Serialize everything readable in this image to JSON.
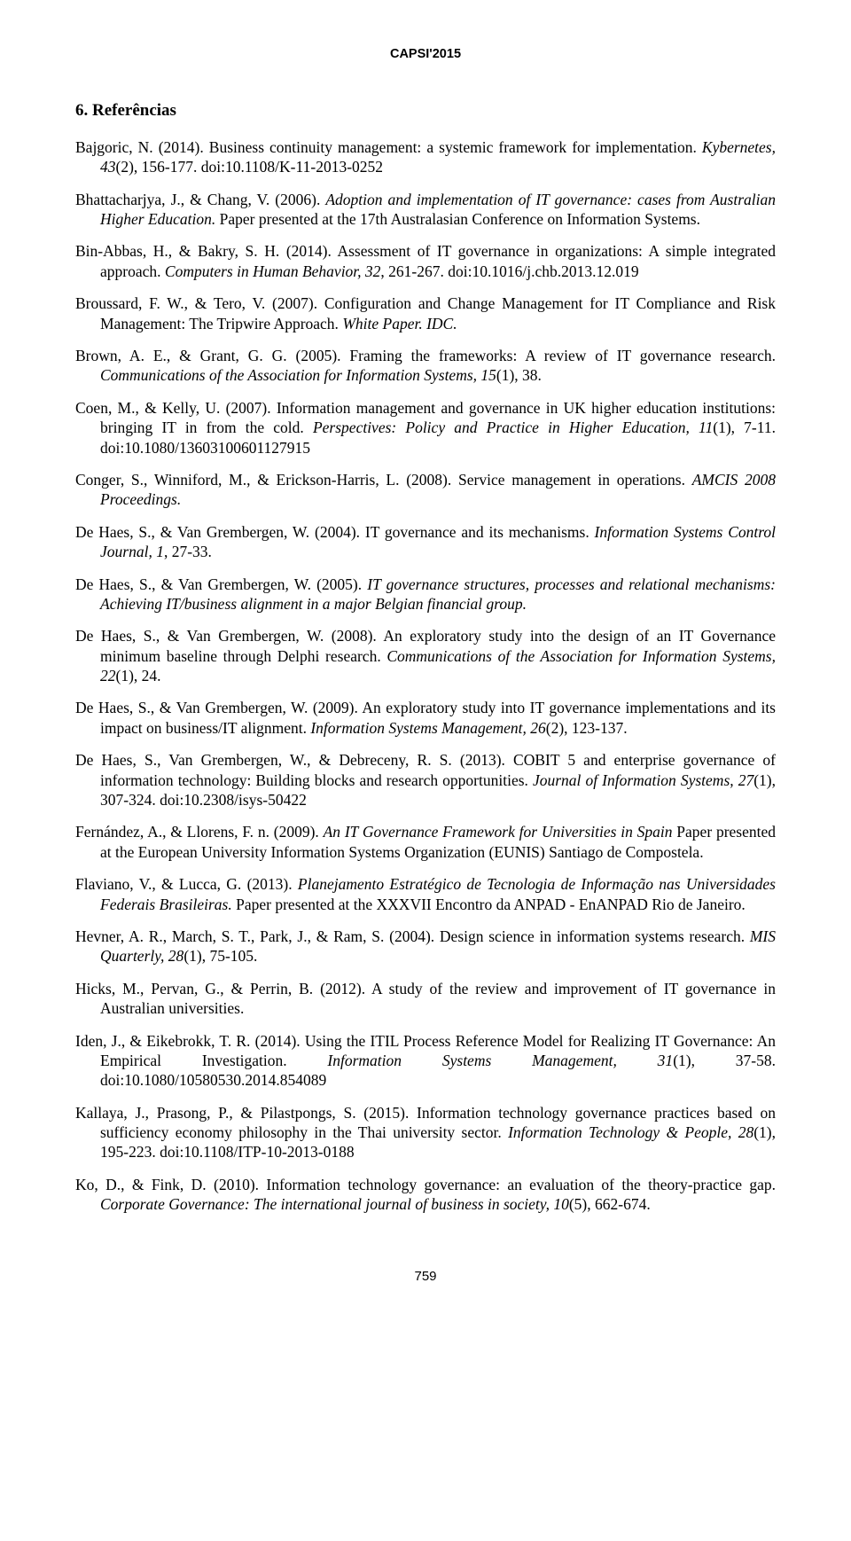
{
  "header": "CAPSI'2015",
  "section_title": "6. Referências",
  "page_number": "759",
  "references": [
    {
      "html": "Bajgoric, N. (2014). Business continuity management: a systemic framework for implementation. <em>Kybernetes, 43</em>(2), 156-177. doi:10.1108/K-11-2013-0252"
    },
    {
      "html": "Bhattacharjya, J., & Chang, V. (2006). <em>Adoption and implementation of IT governance: cases from Australian Higher Education.</em> Paper presented at the 17th Australasian Conference on Information Systems."
    },
    {
      "html": "Bin-Abbas, H., & Bakry, S. H. (2014). Assessment of IT governance in organizations: A simple integrated approach. <em>Computers in Human Behavior, 32</em>, 261-267. doi:10.1016/j.chb.2013.12.019"
    },
    {
      "html": "Broussard, F. W., & Tero, V. (2007). Configuration and Change Management for IT Compliance and Risk Management: The Tripwire Approach. <em>White Paper. IDC.</em>"
    },
    {
      "html": "Brown, A. E., & Grant, G. G. (2005). Framing the frameworks: A review of IT governance research. <em>Communications of the Association for Information Systems, 15</em>(1), 38."
    },
    {
      "html": "Coen, M., & Kelly, U. (2007). Information management and governance in UK higher education institutions: bringing IT in from the cold. <em>Perspectives: Policy and Practice in Higher Education, 11</em>(1), 7-11. doi:10.1080/13603100601127915"
    },
    {
      "html": "Conger, S., Winniford, M., & Erickson-Harris, L. (2008). Service management in operations. <em>AMCIS 2008 Proceedings.</em>"
    },
    {
      "html": "De Haes, S., & Van Grembergen, W. (2004). IT governance and its mechanisms. <em>Information Systems Control Journal, 1</em>, 27-33."
    },
    {
      "html": "De Haes, S., & Van Grembergen, W. (2005). <em>IT governance structures, processes and relational mechanisms: Achieving IT/business alignment in a major Belgian financial group.</em>"
    },
    {
      "html": "De Haes, S., & Van Grembergen, W. (2008). An exploratory study into the design of an IT Governance minimum baseline through Delphi research. <em>Communications of the Association for Information Systems, 22</em>(1), 24."
    },
    {
      "html": "De Haes, S., & Van Grembergen, W. (2009). An exploratory study into IT governance implementations and its impact on business/IT alignment. <em>Information Systems Management, 26</em>(2), 123-137."
    },
    {
      "html": "De Haes, S., Van Grembergen, W., & Debreceny, R. S. (2013). COBIT 5 and enterprise governance of information technology: Building blocks and research opportunities. <em>Journal of Information Systems, 27</em>(1), 307-324. doi:10.2308/isys-50422"
    },
    {
      "html": "Fernández, A., & Llorens, F. n. (2009). <em>An IT Governance Framework for Universities in Spain</em> Paper presented at the European University Information Systems Organization (EUNIS) Santiago de Compostela."
    },
    {
      "html": "Flaviano, V., & Lucca, G. (2013). <em>Planejamento Estratégico de Tecnologia de Informação nas Universidades Federais Brasileiras.</em> Paper presented at the XXXVII Encontro da ANPAD - EnANPAD Rio de Janeiro."
    },
    {
      "html": "Hevner, A. R., March, S. T., Park, J., & Ram, S. (2004). Design science in information systems research. <em>MIS Quarterly, 28</em>(1), 75-105."
    },
    {
      "html": "Hicks, M., Pervan, G., & Perrin, B. (2012). A study of the review and improvement of IT governance in Australian universities."
    },
    {
      "html": "Iden, J., & Eikebrokk, T. R. (2014). Using the ITIL Process Reference Model for Realizing IT Governance: An Empirical Investigation. <em>Information Systems Management, 31</em>(1), 37-58. doi:10.1080/10580530.2014.854089"
    },
    {
      "html": "Kallaya, J., Prasong, P., & Pilastpongs, S. (2015). Information technology governance practices based on sufficiency economy philosophy in the Thai university sector. <em>Information Technology & People, 28</em>(1), 195-223. doi:10.1108/ITP-10-2013-0188"
    },
    {
      "html": "Ko, D., & Fink, D. (2010). Information technology governance: an evaluation of the theory-practice gap. <em>Corporate Governance: The international journal of business in society, 10</em>(5), 662-674."
    }
  ]
}
